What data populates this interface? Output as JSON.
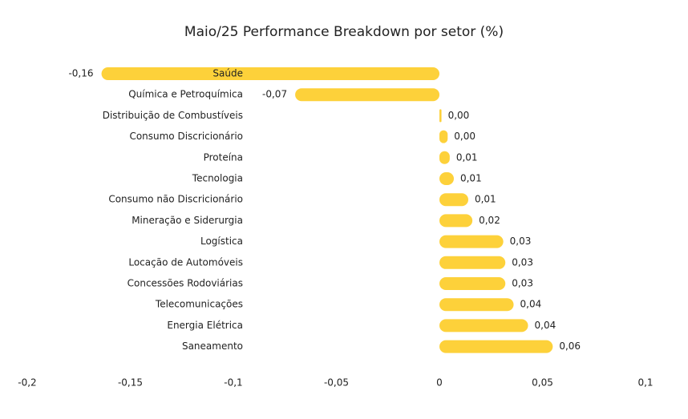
{
  "chart_data": {
    "type": "hbar",
    "title": "Maio/25 Performance Breakdown por setor (%)",
    "categories": [
      "Saúde",
      "Química e Petroquímica",
      "Distribuição de Combustíveis",
      "Consumo Discricionário",
      "Proteína",
      "Tecnologia",
      "Consumo não Discricionário",
      "Mineração e Siderurgia",
      "Logística",
      "Locação de Automóveis",
      "Concessões Rodoviárias",
      "Telecomunicações",
      "Energia Elétrica",
      "Saneamento"
    ],
    "values": [
      -0.164,
      -0.07,
      0.001,
      0.004,
      0.005,
      0.007,
      0.014,
      0.016,
      0.031,
      0.032,
      0.032,
      0.036,
      0.043,
      0.055
    ],
    "value_labels": [
      "-0,16",
      "-0,07",
      "0,00",
      "0,00",
      "0,01",
      "0,01",
      "0,01",
      "0,02",
      "0,03",
      "0,03",
      "0,03",
      "0,04",
      "0,04",
      "0,06"
    ],
    "color": "#fdd13a",
    "xlim": [
      -0.2,
      0.1
    ],
    "xticks": [
      {
        "value": -0.2,
        "label": "-0,2"
      },
      {
        "value": -0.15,
        "label": "-0,15"
      },
      {
        "value": -0.1,
        "label": "-0,1"
      },
      {
        "value": -0.05,
        "label": "-0,05"
      },
      0,
      {
        "value": 0.05,
        "label": "0,05"
      },
      {
        "value": 0.1,
        "label": "0,1"
      }
    ]
  }
}
